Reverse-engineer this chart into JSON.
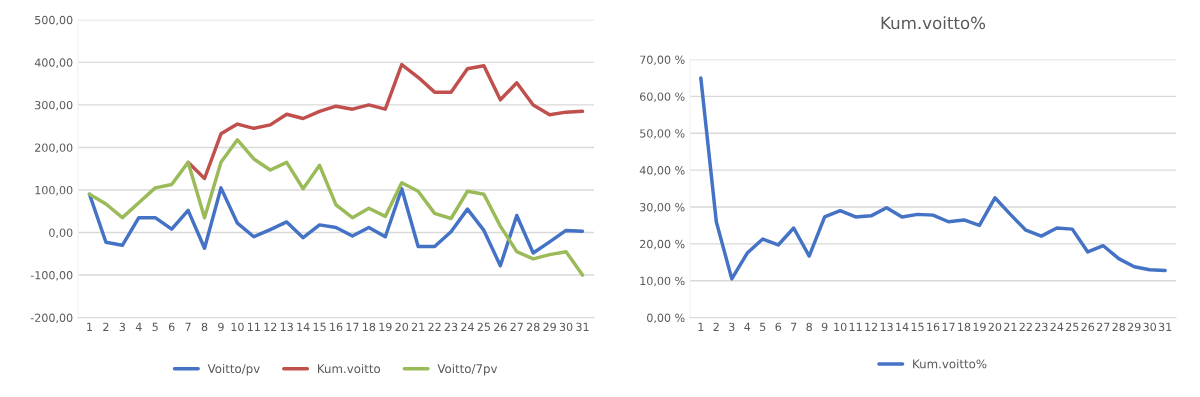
{
  "chart_data": [
    {
      "type": "line",
      "categories": [
        "1",
        "2",
        "3",
        "4",
        "5",
        "6",
        "7",
        "8",
        "9",
        "10",
        "11",
        "12",
        "13",
        "14",
        "15",
        "16",
        "17",
        "18",
        "19",
        "20",
        "21",
        "22",
        "23",
        "24",
        "25",
        "26",
        "27",
        "28",
        "29",
        "30",
        "31"
      ],
      "series": [
        {
          "name": "Voitto/pv",
          "color": "#4472c4",
          "values": [
            90,
            -23,
            -30,
            35,
            35,
            8,
            52,
            -37,
            105,
            22,
            -10,
            7,
            25,
            -12,
            18,
            12,
            -8,
            12,
            -10,
            103,
            -33,
            -33,
            2,
            55,
            5,
            -78,
            40,
            -48,
            -22,
            5,
            3
          ]
        },
        {
          "name": "Kum.voitto",
          "color": "#c0504d",
          "values": [
            null,
            null,
            null,
            null,
            null,
            null,
            165,
            127,
            232,
            255,
            245,
            253,
            278,
            268,
            285,
            297,
            290,
            300,
            290,
            395,
            365,
            330,
            330,
            385,
            392,
            312,
            352,
            300,
            277,
            283,
            285
          ]
        },
        {
          "name": "Voitto/7pv",
          "color": "#9bbb59",
          "values": [
            90,
            67,
            35,
            70,
            105,
            113,
            165,
            35,
            165,
            218,
            173,
            147,
            165,
            103,
            158,
            65,
            35,
            57,
            38,
            117,
            97,
            45,
            33,
            97,
            90,
            15,
            -45,
            -62,
            -52,
            -45,
            -100
          ]
        }
      ],
      "ylim": [
        -200,
        500
      ],
      "yticks": [
        {
          "value": -200,
          "label": "-200,00"
        },
        {
          "value": -100,
          "label": "-100,00"
        },
        {
          "value": 0,
          "label": "0,00"
        },
        {
          "value": 100,
          "label": "100,00"
        },
        {
          "value": 200,
          "label": "200,00"
        },
        {
          "value": 300,
          "label": "300,00"
        },
        {
          "value": 400,
          "label": "400,00"
        },
        {
          "value": 500,
          "label": "500,00"
        }
      ],
      "grid": "y",
      "legend": "bottom",
      "marker": "none",
      "line_style": "solid"
    },
    {
      "type": "line",
      "title": "Kum.voitto%",
      "categories": [
        "1",
        "2",
        "3",
        "4",
        "5",
        "6",
        "7",
        "8",
        "9",
        "10",
        "11",
        "12",
        "13",
        "14",
        "15",
        "16",
        "17",
        "18",
        "19",
        "20",
        "21",
        "22",
        "23",
        "24",
        "25",
        "26",
        "27",
        "28",
        "29",
        "30",
        "31"
      ],
      "series": [
        {
          "name": "Kum.voitto%",
          "color": "#4472c4",
          "values": [
            65,
            26,
            10.5,
            17.5,
            21.3,
            19.7,
            24.3,
            16.7,
            27.3,
            29,
            27.3,
            27.6,
            29.8,
            27.3,
            28,
            27.8,
            26,
            26.5,
            25,
            32.5,
            28,
            23.7,
            22.1,
            24.3,
            24,
            17.8,
            19.5,
            16,
            13.8,
            13,
            12.8
          ]
        }
      ],
      "ylim": [
        0,
        70
      ],
      "yticks": [
        {
          "value": 0,
          "label": "0,00 %"
        },
        {
          "value": 10,
          "label": "10,00 %"
        },
        {
          "value": 20,
          "label": "20,00 %"
        },
        {
          "value": 30,
          "label": "30,00 %"
        },
        {
          "value": 40,
          "label": "40,00 %"
        },
        {
          "value": 50,
          "label": "50,00 %"
        },
        {
          "value": 60,
          "label": "60,00 %"
        },
        {
          "value": 70,
          "label": "70,00 %"
        }
      ],
      "grid": "y",
      "legend": "bottom",
      "marker": "none",
      "line_style": "solid"
    }
  ]
}
